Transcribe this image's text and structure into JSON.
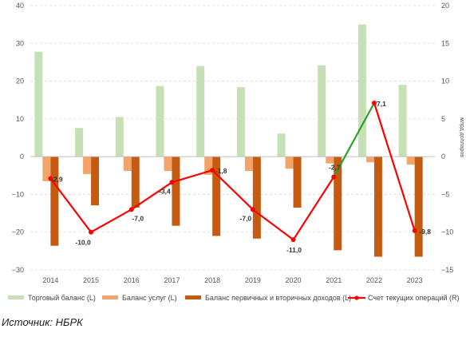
{
  "chart_data": {
    "type": "bar",
    "title": "",
    "categories": [
      "2014",
      "2015",
      "2016",
      "2017",
      "2018",
      "2019",
      "2020",
      "2021",
      "2022",
      "2023"
    ],
    "ylabel_left": "",
    "ylabel_right": "млрд долларов",
    "ylim_left": [
      -30,
      40
    ],
    "ylim_right": [
      -15,
      20
    ],
    "yticks_left": [
      "40",
      "30",
      "20",
      "10",
      "0",
      "−10",
      "−20",
      "−30"
    ],
    "yticks_right": [
      "20",
      "15",
      "10",
      "5",
      "0",
      "−5",
      "−10",
      "−15"
    ],
    "grid": true,
    "legend_position": "bottom",
    "series": [
      {
        "name": "Торговый баланс (L)",
        "axis": "left",
        "type": "bar",
        "color": "#c5e0b4",
        "values": [
          27.8,
          7.6,
          10.5,
          18.7,
          24.0,
          18.4,
          6.1,
          24.2,
          35.0,
          19.0
        ]
      },
      {
        "name": "Баланс услуг (L)",
        "axis": "left",
        "type": "bar",
        "color": "#f4a46a",
        "values": [
          -6.5,
          -4.6,
          -3.8,
          -3.8,
          -4.8,
          -3.8,
          -3.2,
          -1.8,
          -1.5,
          -2.1
        ]
      },
      {
        "name": "Баланс первичных и вторичных доходов (L)",
        "axis": "left",
        "type": "bar",
        "color": "#c55a11",
        "values": [
          -23.6,
          -12.9,
          -13.5,
          -18.3,
          -21.0,
          -21.7,
          -13.5,
          -24.8,
          -26.5,
          -26.5
        ]
      },
      {
        "name": "Счет текущих операций (R)",
        "axis": "right",
        "type": "line",
        "color": "#ff0000",
        "highlight_color": "#2ca02c",
        "values": [
          -2.9,
          -10.0,
          -7.0,
          -3.4,
          -1.8,
          -7.0,
          -11.0,
          -2.7,
          7.1,
          -9.8
        ],
        "labels": [
          "-2,9",
          "-10,0",
          "-7,0",
          "-3,4",
          "-1,8",
          "-7,0",
          "-11,0",
          "-2,7",
          "7,1",
          "-9,8"
        ]
      }
    ]
  },
  "source_text": "Источник: НБРК"
}
